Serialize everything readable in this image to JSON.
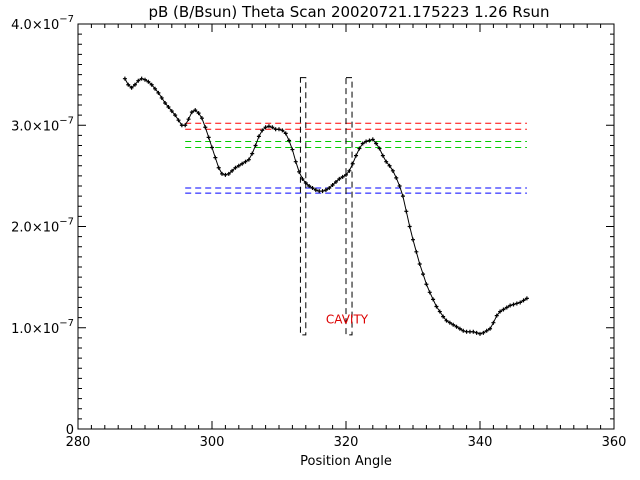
{
  "chart_data": {
    "type": "line",
    "title": "pB (B/Bsun) Theta Scan 20020721.175223 1.26 Rsun",
    "xlabel": "Position Angle",
    "ylabel": "",
    "xlim": [
      280,
      360
    ],
    "ylim": [
      0,
      4e-07
    ],
    "x_ticks": [
      {
        "value": 280,
        "label": "280"
      },
      {
        "value": 300,
        "label": "300"
      },
      {
        "value": 320,
        "label": "320"
      },
      {
        "value": 340,
        "label": "340"
      },
      {
        "value": 360,
        "label": "360"
      }
    ],
    "y_ticks": [
      {
        "value": 0,
        "label": "0"
      },
      {
        "value": 1e-07,
        "mantissa": "1.0×10",
        "exponent": "−7"
      },
      {
        "value": 2e-07,
        "mantissa": "2.0×10",
        "exponent": "−7"
      },
      {
        "value": 3e-07,
        "mantissa": "3.0×10",
        "exponent": "−7"
      },
      {
        "value": 4e-07,
        "mantissa": "4.0×10",
        "exponent": "−7"
      }
    ],
    "series": [
      {
        "color": "#000000",
        "markers": "plus",
        "x": [
          287.0,
          287.5,
          288.0,
          288.5,
          289.0,
          289.5,
          290.0,
          290.5,
          291.0,
          291.5,
          292.0,
          292.5,
          293.0,
          293.5,
          294.0,
          294.5,
          295.0,
          295.5,
          296.0,
          296.5,
          297.0,
          297.5,
          298.0,
          298.5,
          299.0,
          299.5,
          300.0,
          300.5,
          301.0,
          301.5,
          302.0,
          302.5,
          303.0,
          303.5,
          304.0,
          304.5,
          305.0,
          305.5,
          306.0,
          306.5,
          307.0,
          307.5,
          308.0,
          308.5,
          309.0,
          309.5,
          310.0,
          310.5,
          311.0,
          311.5,
          312.0,
          312.5,
          313.0,
          313.5,
          314.0,
          314.5,
          315.0,
          315.5,
          316.0,
          316.5,
          317.0,
          317.5,
          318.0,
          318.5,
          319.0,
          319.5,
          320.0,
          320.5,
          321.0,
          321.5,
          322.0,
          322.5,
          323.0,
          323.5,
          324.0,
          324.5,
          325.0,
          325.5,
          326.0,
          326.5,
          327.0,
          327.5,
          328.0,
          328.5,
          329.0,
          329.5,
          330.0,
          330.5,
          331.0,
          331.5,
          332.0,
          332.5,
          333.0,
          333.5,
          334.0,
          334.5,
          335.0,
          335.5,
          336.0,
          336.5,
          337.0,
          337.5,
          338.0,
          338.5,
          339.0,
          339.5,
          340.0,
          340.5,
          341.0,
          341.5,
          342.0,
          342.5,
          343.0,
          343.5,
          344.0,
          344.5,
          345.0,
          345.5,
          346.0,
          346.5,
          347.0
        ],
        "y": [
          3.46e-07,
          3.4e-07,
          3.37e-07,
          3.4e-07,
          3.44e-07,
          3.46e-07,
          3.45e-07,
          3.43e-07,
          3.4e-07,
          3.36e-07,
          3.32e-07,
          3.27e-07,
          3.22e-07,
          3.18e-07,
          3.14e-07,
          3.1e-07,
          3.05e-07,
          3e-07,
          3e-07,
          3.06e-07,
          3.13e-07,
          3.15e-07,
          3.12e-07,
          3.07e-07,
          2.98e-07,
          2.88e-07,
          2.78e-07,
          2.68e-07,
          2.58e-07,
          2.52e-07,
          2.51e-07,
          2.52e-07,
          2.55e-07,
          2.58e-07,
          2.6e-07,
          2.62e-07,
          2.64e-07,
          2.66e-07,
          2.72e-07,
          2.8e-07,
          2.89e-07,
          2.95e-07,
          2.98e-07,
          2.99e-07,
          2.98e-07,
          2.96e-07,
          2.96e-07,
          2.95e-07,
          2.92e-07,
          2.85e-07,
          2.76e-07,
          2.64e-07,
          2.54e-07,
          2.47e-07,
          2.43e-07,
          2.4e-07,
          2.38e-07,
          2.36e-07,
          2.35e-07,
          2.35e-07,
          2.36e-07,
          2.38e-07,
          2.41e-07,
          2.44e-07,
          2.47e-07,
          2.49e-07,
          2.51e-07,
          2.55e-07,
          2.62e-07,
          2.7e-07,
          2.77e-07,
          2.82e-07,
          2.84e-07,
          2.85e-07,
          2.86e-07,
          2.82e-07,
          2.77e-07,
          2.7e-07,
          2.64e-07,
          2.6e-07,
          2.55e-07,
          2.48e-07,
          2.4e-07,
          2.3e-07,
          2.15e-07,
          2e-07,
          1.87e-07,
          1.75e-07,
          1.63e-07,
          1.53e-07,
          1.43e-07,
          1.35e-07,
          1.28e-07,
          1.21e-07,
          1.16e-07,
          1.11e-07,
          1.07e-07,
          1.05e-07,
          1.03e-07,
          1.01e-07,
          9.9e-08,
          9.7e-08,
          9.6e-08,
          9.6e-08,
          9.6e-08,
          9.5e-08,
          9.4e-08,
          9.5e-08,
          9.7e-08,
          9.9e-08,
          1.05e-07,
          1.12e-07,
          1.16e-07,
          1.18e-07,
          1.2e-07,
          1.22e-07,
          1.23e-07,
          1.24e-07,
          1.25e-07,
          1.27e-07,
          1.29e-07
        ]
      }
    ],
    "reference_lines": [
      {
        "y": 3.02e-07,
        "x_range": [
          296,
          347
        ],
        "color": "#ff0000",
        "style": "dashed"
      },
      {
        "y": 2.96e-07,
        "x_range": [
          296,
          347
        ],
        "color": "#ff0000",
        "style": "dashed"
      },
      {
        "y": 2.84e-07,
        "x_range": [
          296,
          347
        ],
        "color": "#00cc00",
        "style": "dashed"
      },
      {
        "y": 2.78e-07,
        "x_range": [
          296,
          347
        ],
        "color": "#00cc00",
        "style": "dashed"
      },
      {
        "y": 2.38e-07,
        "x_range": [
          296,
          347
        ],
        "color": "#0000ff",
        "style": "dashed"
      },
      {
        "y": 2.33e-07,
        "x_range": [
          296,
          347
        ],
        "color": "#0000ff",
        "style": "dashed"
      }
    ],
    "regions": [
      {
        "x0": 313.2,
        "x1": 314.0,
        "y0": 9.3e-08,
        "y1": 3.47e-07,
        "color": "#000000",
        "style": "dashed"
      },
      {
        "x0": 320.0,
        "x1": 320.9,
        "y0": 9.3e-08,
        "y1": 3.47e-07,
        "color": "#000000",
        "style": "dashed"
      }
    ],
    "annotations": [
      {
        "text": "CAVITY",
        "x": 317.0,
        "y": 1.04e-07,
        "color": "#dd0000"
      }
    ],
    "grid": false,
    "legend": "none"
  }
}
